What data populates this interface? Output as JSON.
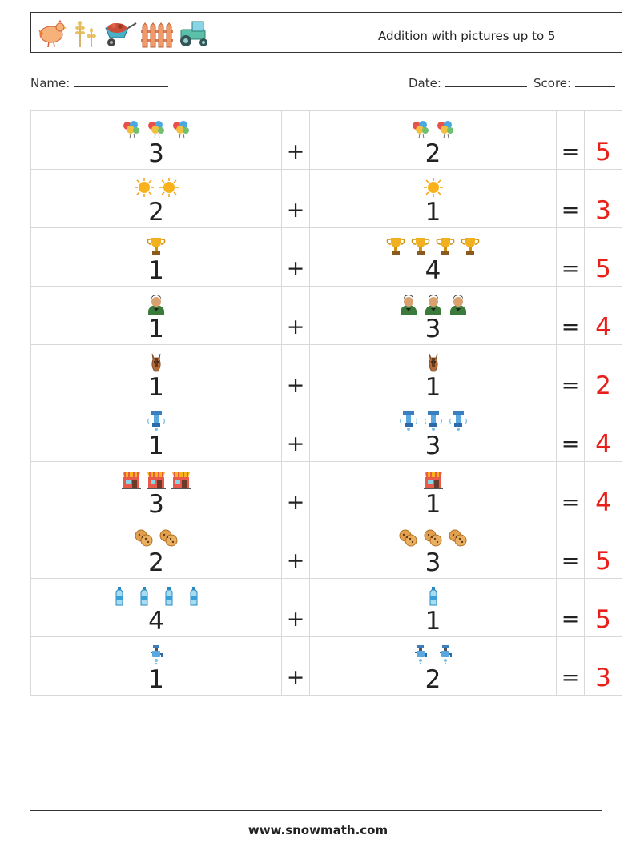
{
  "header": {
    "title": "Addition with pictures up to 5",
    "icons": [
      "chicken-icon",
      "wheat-icon",
      "wheelbarrow-icon",
      "fence-icon",
      "tractor-icon"
    ]
  },
  "meta": {
    "name_label": "Name:",
    "date_label": "Date:",
    "score_label": "Score:"
  },
  "operators": {
    "plus": "+",
    "equals": "="
  },
  "problems": [
    {
      "a": "3",
      "a_icon": "balloons-icon",
      "b": "2",
      "b_icon": "balloons-icon",
      "answer": "5"
    },
    {
      "a": "2",
      "a_icon": "sun-icon",
      "b": "1",
      "b_icon": "sun-icon",
      "answer": "3"
    },
    {
      "a": "1",
      "a_icon": "trophy-icon",
      "b": "4",
      "b_icon": "trophy-icon",
      "answer": "5"
    },
    {
      "a": "1",
      "a_icon": "person-icon",
      "b": "3",
      "b_icon": "person-icon",
      "answer": "4"
    },
    {
      "a": "1",
      "a_icon": "horse-icon",
      "b": "1",
      "b_icon": "horse-icon",
      "answer": "2"
    },
    {
      "a": "1",
      "a_icon": "water-filter-icon",
      "b": "3",
      "b_icon": "water-filter-icon",
      "answer": "4"
    },
    {
      "a": "3",
      "a_icon": "shop-icon",
      "b": "1",
      "b_icon": "shop-icon",
      "answer": "4"
    },
    {
      "a": "2",
      "a_icon": "cookies-icon",
      "b": "3",
      "b_icon": "cookies-icon",
      "answer": "5"
    },
    {
      "a": "4",
      "a_icon": "bottle-icon",
      "b": "1",
      "b_icon": "bottle-icon",
      "answer": "5"
    },
    {
      "a": "1",
      "a_icon": "faucet-icon",
      "b": "2",
      "b_icon": "faucet-icon",
      "answer": "3"
    }
  ],
  "colors": {
    "answer": "#e8201a",
    "border": "#d8d8d8"
  },
  "footer": {
    "url": "www.snowmath.com"
  }
}
